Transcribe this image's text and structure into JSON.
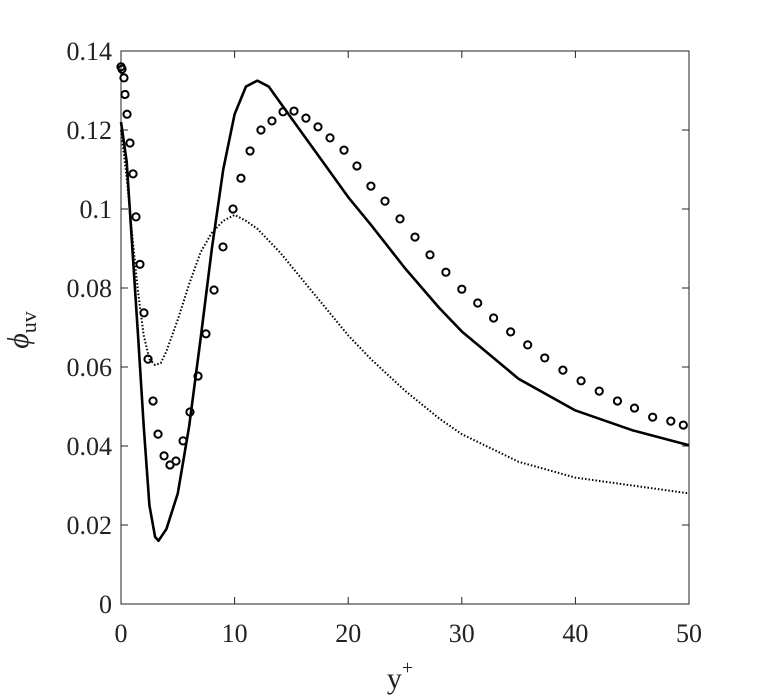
{
  "chart_data": {
    "type": "line",
    "xlabel": {
      "base": "y",
      "superscript": "+"
    },
    "ylabel": {
      "base": "ϕ",
      "subscript": "uv"
    },
    "xlim": [
      0,
      50
    ],
    "ylim": [
      0,
      0.14
    ],
    "xticks": [
      0,
      10,
      20,
      30,
      40,
      50
    ],
    "yticks": [
      0,
      0.02,
      0.04,
      0.06,
      0.08,
      0.1,
      0.12,
      0.14
    ],
    "series": [
      {
        "style": "solid",
        "color": "#000000",
        "x": [
          0,
          0.5,
          1,
          1.5,
          2,
          2.5,
          3,
          3.3,
          4,
          5,
          6,
          7,
          8,
          9,
          10,
          11,
          12,
          13,
          14,
          16,
          18,
          20,
          22,
          25,
          28,
          30,
          35,
          40,
          45,
          50
        ],
        "values": [
          0.122,
          0.112,
          0.09,
          0.068,
          0.045,
          0.025,
          0.017,
          0.016,
          0.019,
          0.028,
          0.045,
          0.067,
          0.09,
          0.11,
          0.124,
          0.131,
          0.1325,
          0.131,
          0.127,
          0.119,
          0.111,
          0.103,
          0.096,
          0.085,
          0.075,
          0.069,
          0.057,
          0.049,
          0.044,
          0.0402
        ]
      },
      {
        "style": "dotted",
        "color": "#000000",
        "x": [
          0,
          0.5,
          1,
          1.5,
          2,
          2.5,
          3,
          3.5,
          4,
          5,
          6,
          7,
          8,
          9,
          10,
          11,
          12,
          14,
          16,
          18,
          20,
          22,
          25,
          28,
          30,
          35,
          40,
          45,
          50
        ],
        "values": [
          0.12,
          0.108,
          0.093,
          0.079,
          0.068,
          0.062,
          0.0605,
          0.061,
          0.064,
          0.072,
          0.081,
          0.089,
          0.094,
          0.097,
          0.0985,
          0.097,
          0.095,
          0.089,
          0.082,
          0.075,
          0.068,
          0.062,
          0.054,
          0.047,
          0.043,
          0.036,
          0.032,
          0.03,
          0.028
        ]
      },
      {
        "style": "markers",
        "color": "#000000",
        "x": [
          0,
          0.09,
          0.26,
          0.35,
          0.53,
          0.79,
          1.06,
          1.32,
          1.67,
          2.02,
          2.38,
          2.82,
          3.26,
          3.79,
          4.31,
          4.84,
          5.46,
          6.07,
          6.78,
          7.48,
          8.19,
          8.98,
          9.86,
          10.56,
          11.36,
          12.32,
          13.29,
          14.26,
          15.23,
          16.28,
          17.34,
          18.4,
          19.63,
          20.77,
          22.0,
          23.24,
          24.56,
          25.88,
          27.2,
          28.6,
          30.0,
          31.4,
          32.8,
          34.3,
          35.8,
          37.3,
          38.9,
          40.5,
          42.1,
          43.7,
          45.2,
          46.8,
          48.4,
          49.5
        ],
        "values": [
          0.136,
          0.1354,
          0.1332,
          0.129,
          0.124,
          0.1167,
          0.1089,
          0.098,
          0.086,
          0.0737,
          0.062,
          0.0514,
          0.043,
          0.0375,
          0.0352,
          0.0362,
          0.0413,
          0.0486,
          0.0577,
          0.0684,
          0.0795,
          0.0904,
          0.1,
          0.1078,
          0.1147,
          0.12,
          0.1223,
          0.1246,
          0.1248,
          0.123,
          0.1208,
          0.118,
          0.1149,
          0.1109,
          0.1058,
          0.102,
          0.0975,
          0.0929,
          0.0884,
          0.084,
          0.0797,
          0.0762,
          0.0724,
          0.0689,
          0.0656,
          0.0623,
          0.0592,
          0.0565,
          0.0539,
          0.0514,
          0.0496,
          0.0473,
          0.0463,
          0.0453
        ]
      }
    ]
  }
}
